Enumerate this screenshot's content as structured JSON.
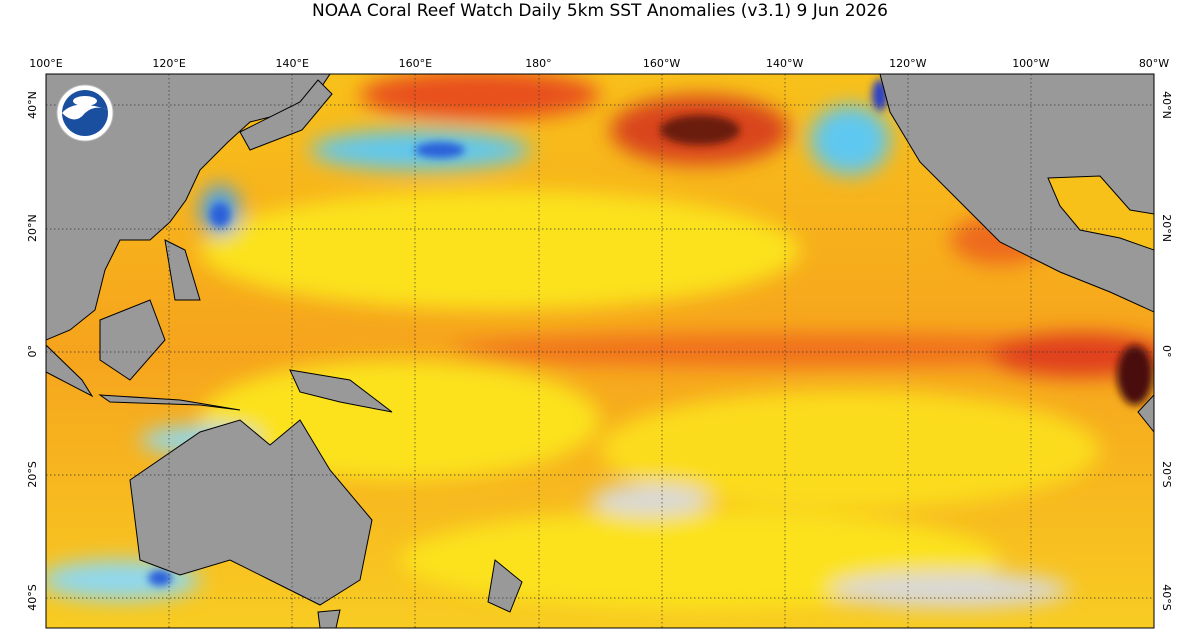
{
  "title": "NOAA Coral Reef Watch Daily 5km SST Anomalies  (v3.1)   9 Jun 2026",
  "map": {
    "lon_labels": [
      "100°E",
      "120°E",
      "140°E",
      "160°E",
      "180°",
      "160°W",
      "140°W",
      "120°W",
      "100°W",
      "80°W"
    ],
    "lat_labels": [
      "40°N",
      "20°N",
      "0°",
      "20°S",
      "40°S"
    ]
  }
}
